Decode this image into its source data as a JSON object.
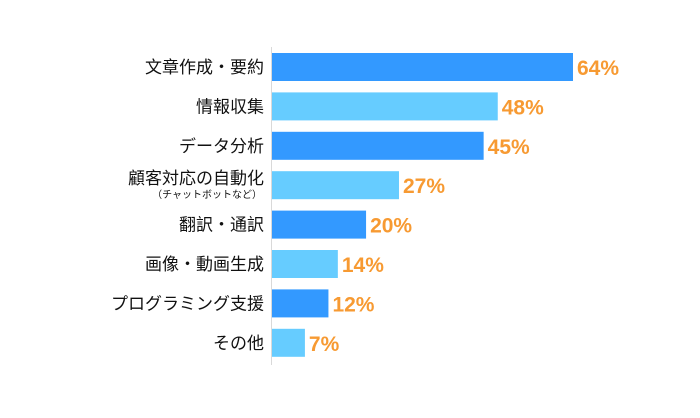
{
  "chart_data": {
    "type": "bar",
    "orientation": "horizontal",
    "categories": [
      "文章作成・要約",
      "情報収集",
      "データ分析",
      "顧客対応の自動化",
      "翻訳・通訳",
      "画像・動画生成",
      "プログラミング支援",
      "その他"
    ],
    "category_sublabels": {
      "3": "（チャットボットなど）"
    },
    "values": [
      64,
      48,
      45,
      27,
      20,
      14,
      12,
      7
    ],
    "value_labels": [
      "64%",
      "48%",
      "45%",
      "27%",
      "20%",
      "14%",
      "12%",
      "7%"
    ],
    "unit": "%",
    "xlim": [
      0,
      64
    ],
    "grid": false,
    "legend": "none",
    "colors": {
      "bar_alternate_1": "#3399FF",
      "bar_alternate_2": "#66CCFF",
      "value_label": "#F79A32",
      "axis": "#D9D9D9"
    }
  }
}
